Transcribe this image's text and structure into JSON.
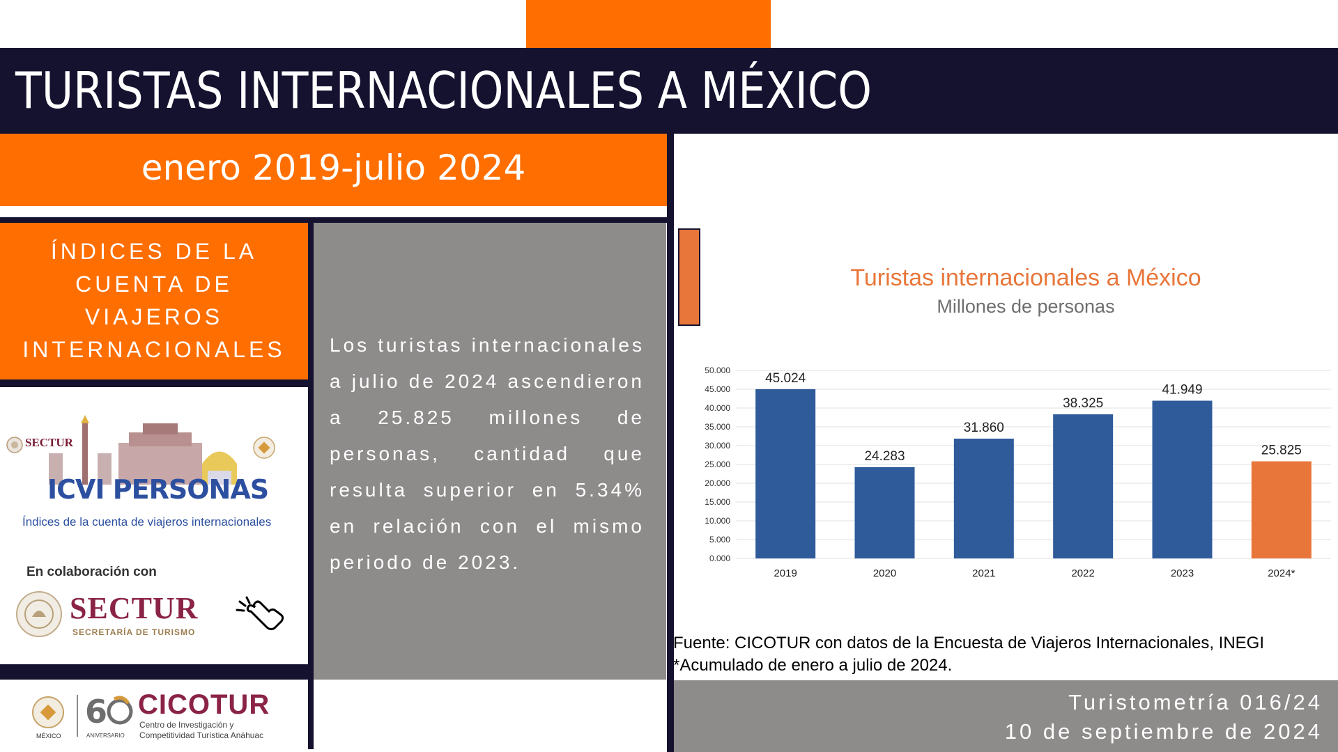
{
  "header": {
    "title": "TURISTAS INTERNACIONALES A MÉXICO",
    "subtitle": "enero 2019-julio 2024"
  },
  "sidebar": {
    "index_title_lines": [
      "ÍNDICES DE LA",
      "CUENTA DE",
      "VIAJEROS",
      "INTERNACIONALES"
    ]
  },
  "body": {
    "paragraph": "Los turistas internacionales a julio de 2024 ascendieron a 25.825 millones de personas, cantidad que resulta superior en 5.34% en relación con el mismo periodo de 2023."
  },
  "logos": {
    "sectur_small": "SECTUR",
    "icvi": "ICVI PERSONAS",
    "icvi_caption": "Índices de la cuenta de viajeros internacionales",
    "collab": "En colaboración con",
    "sectur_big": "SECTUR",
    "sectur_sub": "SECRETARÍA DE TURISMO",
    "cicotur": "CICOTUR",
    "cicotur_sub1": "Centro de Investigación y",
    "cicotur_sub2": "Competitividad Turística Anáhuac",
    "anniversary": "ANIVERSARIO",
    "mexico": "MÉXICO"
  },
  "source": {
    "line1": "Fuente: CICOTUR con datos de la Encuesta de Viajeros Internacionales, INEGI",
    "line2": "*Acumulado de enero a julio de 2024."
  },
  "footer": {
    "line1": "Turistometría 016/24",
    "line2": "10 de septiembre de 2024"
  },
  "colors": {
    "orange": "#ff6e00",
    "navy": "#15122f",
    "bar_blue": "#2f5b9b",
    "bar_orange": "#e8763a",
    "grey": "#8e8b8b"
  },
  "icons": [
    "hand-pointer-icon",
    "sectur-seal-icon",
    "anahuac-seal-icon",
    "ribbon-icon"
  ],
  "chart_data": {
    "type": "bar",
    "title": "Turistas internacionales a México",
    "subtitle": "Millones de personas",
    "categories": [
      "2019",
      "2020",
      "2021",
      "2022",
      "2023",
      "2024*"
    ],
    "values": [
      45.024,
      24.283,
      31.86,
      38.325,
      41.949,
      25.825
    ],
    "value_labels": [
      "45.024",
      "24.283",
      "31.860",
      "38.325",
      "41.949",
      "25.825"
    ],
    "highlight_index": 5,
    "ylim": [
      0,
      50
    ],
    "yticks": [
      0,
      5,
      10,
      15,
      20,
      25,
      30,
      35,
      40,
      45,
      50
    ],
    "ytick_labels": [
      "0.000",
      "5.000",
      "10.000",
      "15.000",
      "20.000",
      "25.000",
      "30.000",
      "35.000",
      "40.000",
      "45.000",
      "50.000"
    ],
    "grid": true,
    "legend": "none"
  }
}
